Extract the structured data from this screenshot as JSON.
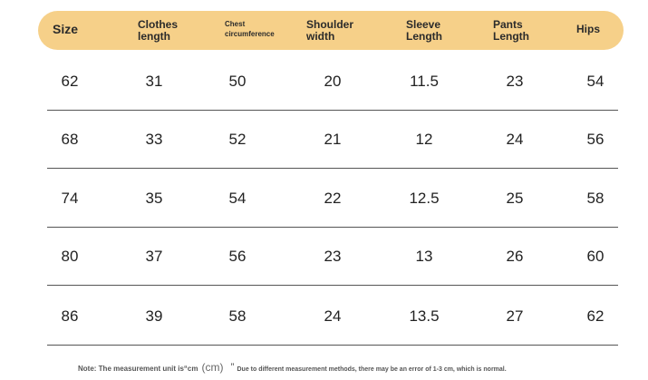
{
  "headers": [
    "Size",
    "Clothes length",
    "Chest circumference",
    "Shoulder width",
    "Sleeve Length",
    "Pants Length",
    "Hips"
  ],
  "rows": [
    [
      "62",
      "31",
      "50",
      "20",
      "11.5",
      "23",
      "54"
    ],
    [
      "68",
      "33",
      "52",
      "21",
      "12",
      "24",
      "56"
    ],
    [
      "74",
      "35",
      "54",
      "22",
      "12.5",
      "25",
      "58"
    ],
    [
      "80",
      "37",
      "56",
      "23",
      "13",
      "26",
      "60"
    ],
    [
      "86",
      "39",
      "58",
      "24",
      "13.5",
      "27",
      "62"
    ]
  ],
  "note": {
    "prefix": "Note: The measurement unit is“cm",
    "unit": "(cm)",
    "quote": "”",
    "suffix": "Due to different measurement methods, there may be an error of 1-3 cm, which is normal."
  },
  "colors": {
    "header_bg": "#f6d089",
    "row_line": "#555555"
  }
}
